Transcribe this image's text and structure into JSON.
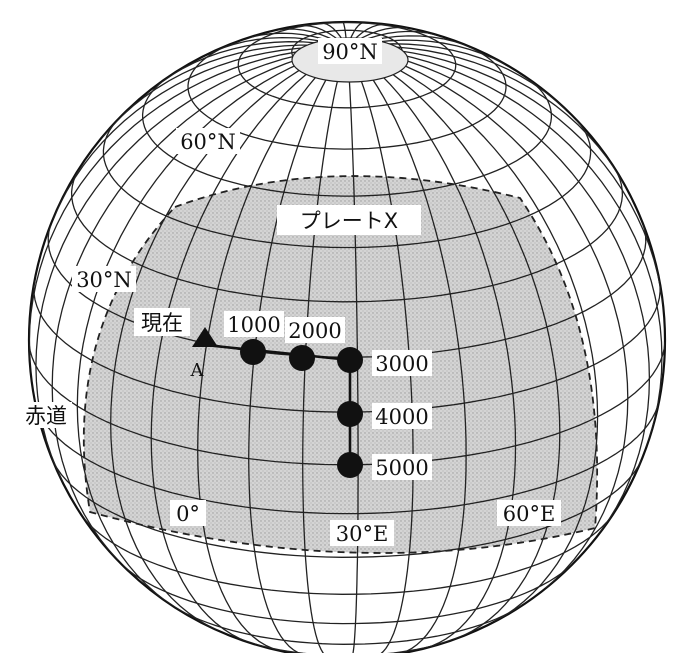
{
  "labels": {
    "north_pole": "90°N",
    "lat60": "60°N",
    "lat30": "30°N",
    "equator": "赤道",
    "lon0": "0°",
    "lon30": "30°E",
    "lon60": "60°E",
    "plate": "プレートX",
    "present": "現在",
    "point_a": "A"
  },
  "hotspot_track": {
    "present_marker": "triangle",
    "points": [
      {
        "age": "1000"
      },
      {
        "age": "2000"
      },
      {
        "age": "3000"
      },
      {
        "age": "4000"
      },
      {
        "age": "5000"
      }
    ]
  },
  "colors": {
    "plate_fill": "#cfcfcf",
    "line": "#111111",
    "background": "#ffffff"
  }
}
